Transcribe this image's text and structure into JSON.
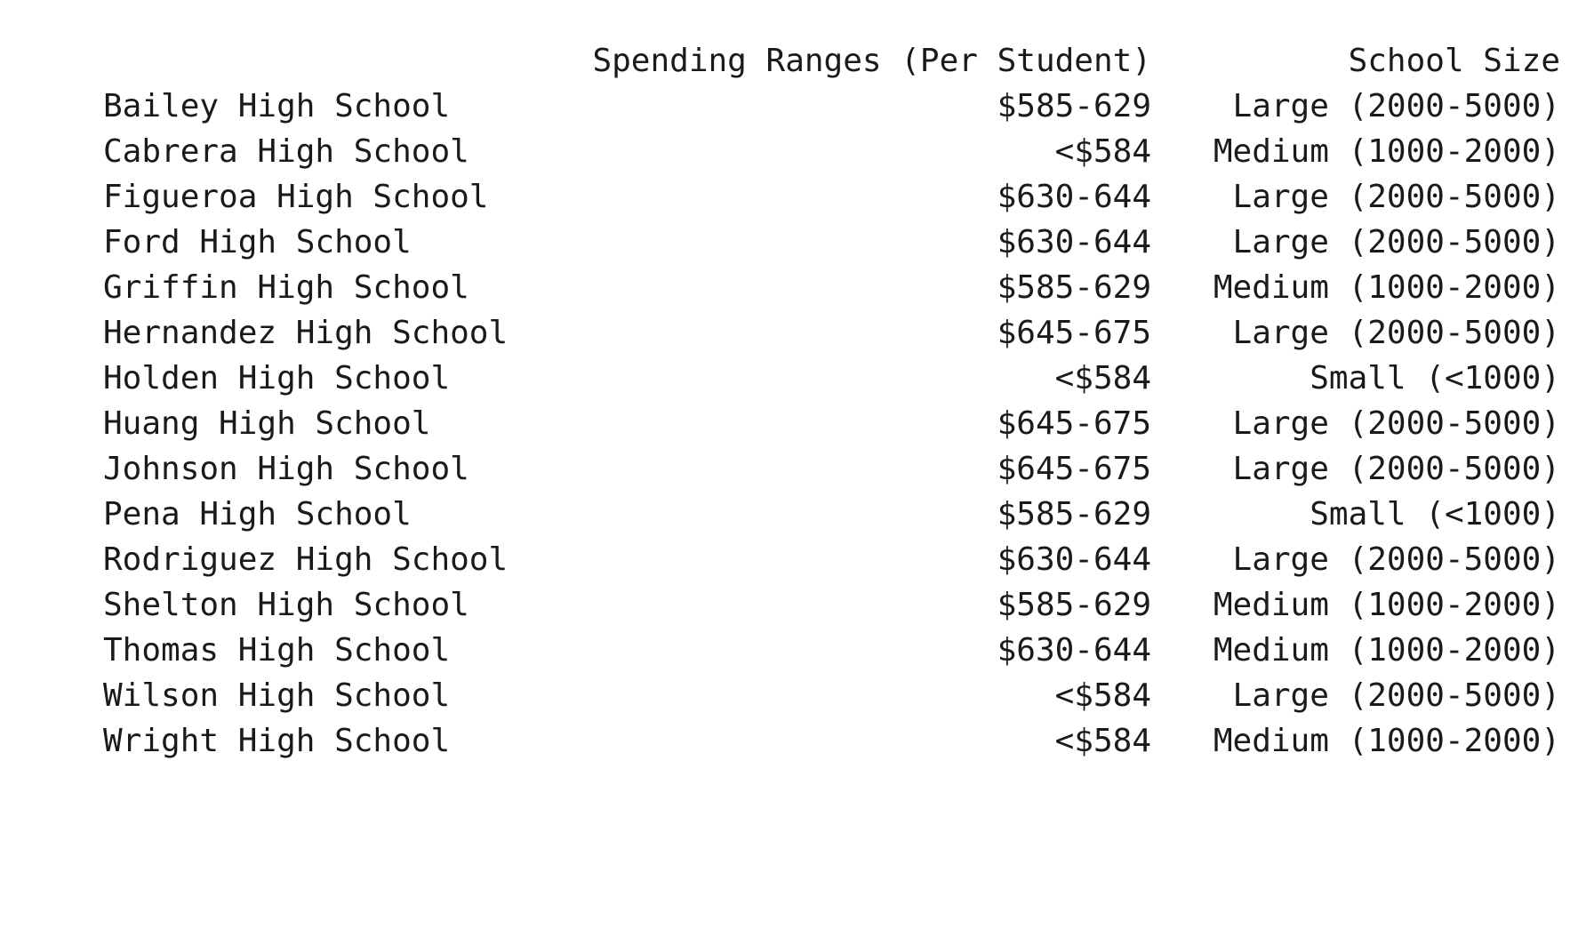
{
  "table": {
    "headers": {
      "index": "",
      "spending": "Spending Ranges (Per Student)",
      "size": "School Size"
    },
    "rows": [
      {
        "school": "Bailey High School",
        "spending": "$585-629",
        "size": "Large (2000-5000)"
      },
      {
        "school": "Cabrera High School",
        "spending": "<$584",
        "size": "Medium (1000-2000)"
      },
      {
        "school": "Figueroa High School",
        "spending": "$630-644",
        "size": "Large (2000-5000)"
      },
      {
        "school": "Ford High School",
        "spending": "$630-644",
        "size": "Large (2000-5000)"
      },
      {
        "school": "Griffin High School",
        "spending": "$585-629",
        "size": "Medium (1000-2000)"
      },
      {
        "school": "Hernandez High School",
        "spending": "$645-675",
        "size": "Large (2000-5000)"
      },
      {
        "school": "Holden High School",
        "spending": "<$584",
        "size": "Small (<1000)"
      },
      {
        "school": "Huang High School",
        "spending": "$645-675",
        "size": "Large (2000-5000)"
      },
      {
        "school": "Johnson High School",
        "spending": "$645-675",
        "size": "Large (2000-5000)"
      },
      {
        "school": "Pena High School",
        "spending": "$585-629",
        "size": "Small (<1000)"
      },
      {
        "school": "Rodriguez High School",
        "spending": "$630-644",
        "size": "Large (2000-5000)"
      },
      {
        "school": "Shelton High School",
        "spending": "$585-629",
        "size": "Medium (1000-2000)"
      },
      {
        "school": "Thomas High School",
        "spending": "$630-644",
        "size": "Medium (1000-2000)"
      },
      {
        "school": "Wilson High School",
        "spending": "<$584",
        "size": "Large (2000-5000)"
      },
      {
        "school": "Wright High School",
        "spending": "<$584",
        "size": "Medium (1000-2000)"
      }
    ]
  }
}
